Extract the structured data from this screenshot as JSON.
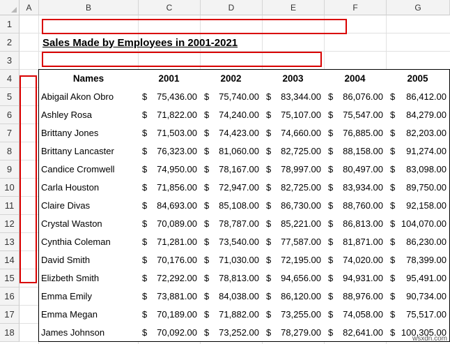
{
  "sheet": {
    "columns": [
      "A",
      "B",
      "C",
      "D",
      "E",
      "F",
      "G"
    ],
    "rows": [
      "1",
      "2",
      "3",
      "4",
      "5",
      "6",
      "7",
      "8",
      "9",
      "10",
      "11",
      "12",
      "13",
      "14",
      "15",
      "16",
      "17",
      "18"
    ],
    "title": "Sales Made by Employees in 2001-2021",
    "table_headers": [
      "Names",
      "2001",
      "2002",
      "2003",
      "2004",
      "2005"
    ],
    "currency_symbol": "$",
    "table_rows": [
      {
        "name": "Abigail Akon Obro",
        "values": [
          "75,436.00",
          "75,740.00",
          "83,344.00",
          "86,076.00",
          "86,412.00"
        ]
      },
      {
        "name": "Ashley Rosa",
        "values": [
          "71,822.00",
          "74,240.00",
          "75,107.00",
          "75,547.00",
          "84,279.00"
        ]
      },
      {
        "name": "Brittany Jones",
        "values": [
          "71,503.00",
          "74,423.00",
          "74,660.00",
          "76,885.00",
          "82,203.00"
        ]
      },
      {
        "name": "Brittany Lancaster",
        "values": [
          "76,323.00",
          "81,060.00",
          "82,725.00",
          "88,158.00",
          "91,274.00"
        ]
      },
      {
        "name": "Candice Cromwell",
        "values": [
          "74,950.00",
          "78,167.00",
          "78,997.00",
          "80,497.00",
          "83,098.00"
        ]
      },
      {
        "name": "Carla Houston",
        "values": [
          "71,856.00",
          "72,947.00",
          "82,725.00",
          "83,934.00",
          "89,750.00"
        ]
      },
      {
        "name": "Claire Divas",
        "values": [
          "84,693.00",
          "85,108.00",
          "86,730.00",
          "88,760.00",
          "92,158.00"
        ]
      },
      {
        "name": "Crystal Waston",
        "values": [
          "70,089.00",
          "78,787.00",
          "85,221.00",
          "86,813.00",
          "104,070.00"
        ]
      },
      {
        "name": "Cynthia Coleman",
        "values": [
          "71,281.00",
          "73,540.00",
          "77,587.00",
          "81,871.00",
          "86,230.00"
        ]
      },
      {
        "name": "David Smith",
        "values": [
          "70,176.00",
          "71,030.00",
          "72,195.00",
          "74,020.00",
          "78,399.00"
        ]
      },
      {
        "name": "Elizbeth Smith",
        "values": [
          "72,292.00",
          "78,813.00",
          "94,656.00",
          "94,931.00",
          "95,491.00"
        ]
      },
      {
        "name": "Emma Emily",
        "values": [
          "73,881.00",
          "84,038.00",
          "86,120.00",
          "88,976.00",
          "90,734.00"
        ]
      },
      {
        "name": "Emma Megan",
        "values": [
          "70,189.00",
          "71,882.00",
          "73,255.00",
          "74,058.00",
          "75,517.00"
        ]
      },
      {
        "name": "James Johnson",
        "values": [
          "70,092.00",
          "73,252.00",
          "78,279.00",
          "82,641.00",
          "100,305.00"
        ]
      }
    ]
  },
  "watermark": "wsxdn.com",
  "colors": {
    "highlight": "#d90000",
    "header_bg": "#f3f3f3"
  }
}
